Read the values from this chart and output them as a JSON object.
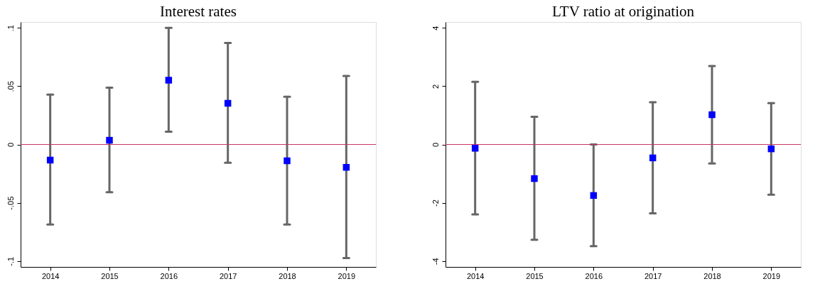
{
  "chart_data": [
    {
      "type": "scatter",
      "title": "Interest rates",
      "categories": [
        "2014",
        "2015",
        "2016",
        "2017",
        "2018",
        "2019"
      ],
      "series": [
        {
          "color": "#0000ff",
          "values": [
            -0.0134,
            0.0036,
            0.0551,
            0.0353,
            -0.014,
            -0.0196
          ],
          "errors": [
            [
              -0.0687,
              0.0428
            ],
            [
              -0.0409,
              0.0487
            ],
            [
              0.0109,
              0.1
            ],
            [
              -0.0157,
              0.087
            ],
            [
              -0.0687,
              0.0409
            ],
            [
              -0.0974,
              0.0587
            ]
          ]
        }
      ],
      "ylim": [
        -0.105,
        0.105
      ],
      "yticks": [
        {
          "value": -0.1,
          "label": "-.1"
        },
        {
          "value": -0.05,
          "label": "-.05"
        },
        0,
        {
          "value": 0.05,
          "label": ".05"
        },
        {
          "value": 0.1,
          "label": ".1"
        }
      ],
      "ref_lines": [
        {
          "axis": "y",
          "value": 0,
          "color": "#cc3366"
        }
      ],
      "marker": "square",
      "grid": false
    },
    {
      "type": "scatter",
      "title": "LTV ratio at origination",
      "categories": [
        "2014",
        "2015",
        "2016",
        "2017",
        "2018",
        "2019"
      ],
      "series": [
        {
          "color": "#0000ff",
          "values": [
            -0.13,
            -1.17,
            -1.75,
            -0.46,
            1.02,
            -0.15
          ],
          "errors": [
            [
              -2.4,
              2.15
            ],
            [
              -3.27,
              0.95
            ],
            [
              -3.49,
              0
            ],
            [
              -2.36,
              1.45
            ],
            [
              -0.65,
              2.69
            ],
            [
              -1.72,
              1.42
            ]
          ]
        }
      ],
      "ylim": [
        -4.2,
        4.2
      ],
      "yticks": [
        -4,
        -2,
        0,
        2,
        4
      ],
      "ref_lines": [
        {
          "axis": "y",
          "value": 0,
          "color": "#cc3366"
        }
      ],
      "marker": "square",
      "grid": false
    }
  ]
}
